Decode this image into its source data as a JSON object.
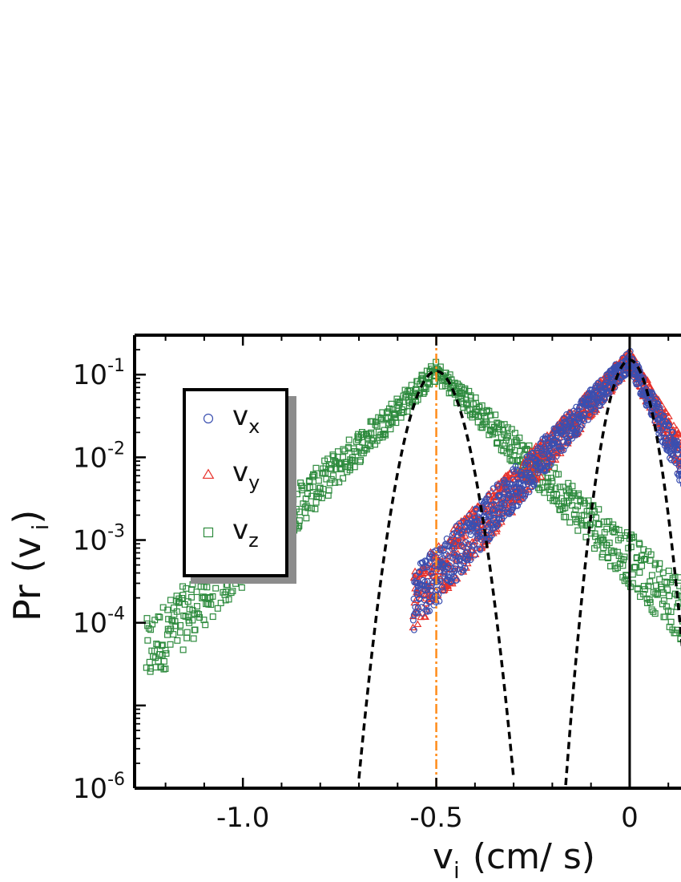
{
  "chart_data": {
    "type": "scatter",
    "xlabel_main": "v",
    "xlabel_sub": "i",
    "xlabel_unit": "(cm/ s)",
    "ylabel_main": "Pr (v",
    "ylabel_sub": "i",
    "ylabel_close": ")",
    "yscale": "log",
    "xlim": [
      -1.28,
      0.17
    ],
    "ylim": [
      1e-06,
      0.3
    ],
    "xticks": [
      {
        "value": -1.0,
        "label": "-1.0"
      },
      {
        "value": -0.5,
        "label": "-0.5"
      },
      {
        "value": 0.0,
        "label": "0"
      }
    ],
    "yticks": [
      {
        "value": 0.1,
        "base": "10",
        "exp": "-1"
      },
      {
        "value": 0.01,
        "base": "10",
        "exp": "-2"
      },
      {
        "value": 0.001,
        "base": "10",
        "exp": "-3"
      },
      {
        "value": 0.0001,
        "base": "10",
        "exp": "-4"
      },
      {
        "value": 1e-06,
        "base": "10",
        "exp": "-6"
      }
    ],
    "legend": {
      "placement": "upper-left",
      "entries": [
        {
          "main": "v",
          "sub": "x",
          "marker": "circle",
          "color": "#3a4fb0"
        },
        {
          "main": "v",
          "sub": "y",
          "marker": "triangle",
          "color": "#e8302a"
        },
        {
          "main": "v",
          "sub": "z",
          "marker": "square",
          "color": "#2e8b3e"
        }
      ]
    },
    "series": [
      {
        "key": "vx",
        "marker": "circle",
        "color": "#3a4fb0",
        "center": 0.0,
        "peak": 0.15,
        "decay_left": 12,
        "decay_right": 22,
        "x_from": -0.56,
        "x_to": 0.17
      },
      {
        "key": "vy",
        "marker": "triangle",
        "color": "#e8302a",
        "center": 0.0,
        "peak": 0.15,
        "decay_left": 12,
        "decay_right": 20,
        "x_from": -0.56,
        "x_to": 0.17
      },
      {
        "key": "vz",
        "marker": "square",
        "color": "#2e8b3e",
        "center": -0.5,
        "peak": 0.11,
        "decay_left": 10.5,
        "decay_right": 10.5,
        "x_from": -1.25,
        "x_to": 0.17
      }
    ],
    "gaussian_fits": [
      {
        "center": -0.5,
        "peak": 0.11,
        "sigma": 0.042,
        "color": "#000000",
        "style": "dashed"
      },
      {
        "center": 0.0,
        "peak": 0.15,
        "sigma": 0.034,
        "color": "#000000",
        "style": "dashed"
      }
    ],
    "vertical_lines": [
      {
        "x": -0.5,
        "color": "#ff8c1a",
        "style": "dashdot"
      },
      {
        "x": 0.0,
        "color": "#000000",
        "style": "solid"
      }
    ]
  }
}
